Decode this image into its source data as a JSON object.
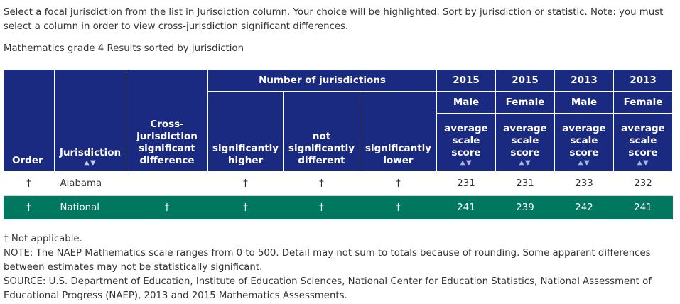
{
  "intro_text": "Select a focal jurisdiction from the list in Jurisdiction column. Your choice will be highlighted. Sort by jurisdiction or statistic. Note: you must select a column in order to view cross-jurisdiction significant differences.",
  "subtitle": "Mathematics grade 4 Results sorted by jurisdiction",
  "header": {
    "order": "Order",
    "jurisdiction": "Jurisdiction",
    "cross": "Cross-jurisdiction significant difference",
    "number_of_jurisdictions": "Number of jurisdictions",
    "sig_higher": "significantly higher",
    "not_sig": "not significantly different",
    "sig_lower": "significantly lower",
    "sort_arrows": "▲▼",
    "score_columns": [
      {
        "year": "2015",
        "group": "Male",
        "stat": "average scale score"
      },
      {
        "year": "2015",
        "group": "Female",
        "stat": "average scale score"
      },
      {
        "year": "2013",
        "group": "Male",
        "stat": "average scale score"
      },
      {
        "year": "2013",
        "group": "Female",
        "stat": "average scale score"
      }
    ]
  },
  "rows": [
    {
      "order": "†",
      "jurisdiction": "Alabama",
      "cross": "",
      "higher": "†",
      "not_diff": "†",
      "lower": "†",
      "scores": [
        "231",
        "231",
        "233",
        "232"
      ]
    },
    {
      "order": "†",
      "jurisdiction": "National",
      "cross": "†",
      "higher": "†",
      "not_diff": "†",
      "lower": "†",
      "scores": [
        "241",
        "239",
        "242",
        "241"
      ]
    }
  ],
  "notes": {
    "not_applicable": "† Not applicable.",
    "note": "NOTE: The NAEP Mathematics scale ranges from 0 to 500. Detail may not sum to totals because of rounding. Some apparent differences between estimates may not be statistically significant.",
    "source": "SOURCE: U.S. Department of Education, Institute of Education Sciences, National Center for Education Statistics, National Assessment of Educational Progress (NAEP), 2013 and 2015 Mathematics Assessments."
  },
  "colors": {
    "header_bg": "#1a2a80",
    "focal_row_bg": "#00775f",
    "header_text": "#ffffff"
  }
}
